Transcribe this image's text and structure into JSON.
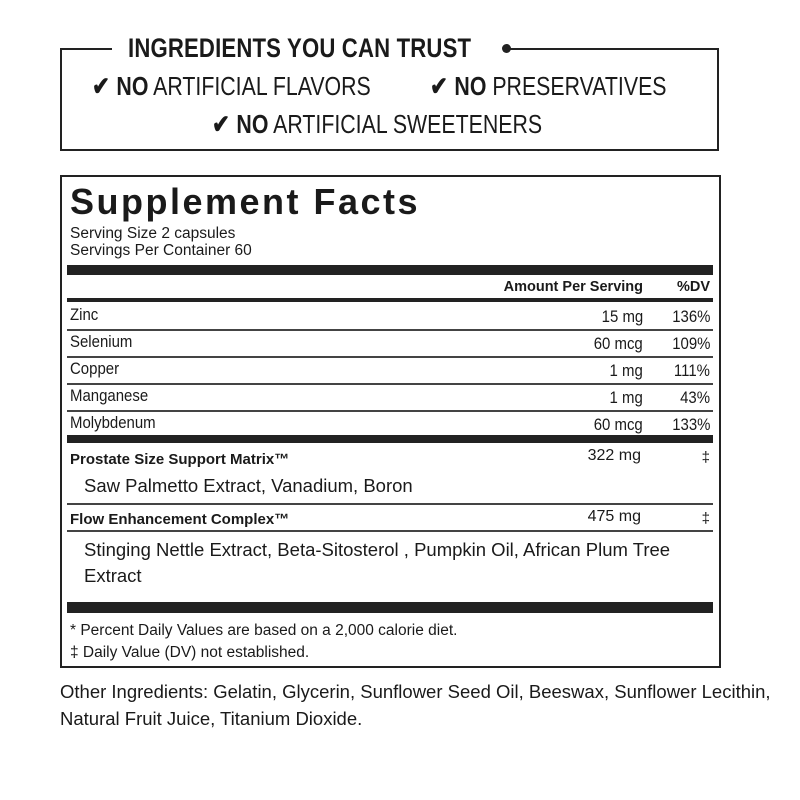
{
  "trust_box": {
    "title": "INGREDIENTS YOU CAN TRUST",
    "claims": [
      {
        "bold": "NO",
        "text": " ARTIFICIAL FLAVORS"
      },
      {
        "bold": "NO",
        "text": " PRESERVATIVES"
      },
      {
        "bold": "NO",
        "text": " ARTIFICIAL SWEETENERS"
      }
    ],
    "check_icon": "✔"
  },
  "facts": {
    "title": "Supplement Facts",
    "serving_size": "Serving Size 2 capsules",
    "servings_per_container": "Servings Per Container 60",
    "header_amount": "Amount Per Serving",
    "header_dv": "%DV",
    "nutrients": [
      {
        "name": "Zinc",
        "amount": "15 mg",
        "dv": "136%"
      },
      {
        "name": "Selenium",
        "amount": "60 mcg",
        "dv": "109%"
      },
      {
        "name": "Copper",
        "amount": "1 mg",
        "dv": "111%"
      },
      {
        "name": "Manganese",
        "amount": "1 mg",
        "dv": "43%"
      },
      {
        "name": "Molybdenum",
        "amount": "60 mcg",
        "dv": "133%"
      }
    ],
    "blends": [
      {
        "name": "Prostate Size Support Matrix™",
        "amount": "322 mg",
        "dv": "‡",
        "ingredients": "Saw Palmetto Extract, Vanadium, Boron"
      },
      {
        "name": "Flow Enhancement Complex™",
        "amount": "475 mg",
        "dv": "‡",
        "ingredients": "Stinging Nettle Extract, Beta-Sitosterol , Pumpkin Oil, African Plum Tree  Extract"
      }
    ],
    "footnote_1": "* Percent Daily Values are based on a 2,000 calorie diet.",
    "footnote_2": "‡ Daily Value (DV) not established."
  },
  "other_ingredients": "Other Ingredients: Gelatin, Glycerin, Sunflower Seed Oil, Beeswax, Sunflower Lecithin, Natural Fruit Juice, Titanium Dioxide."
}
